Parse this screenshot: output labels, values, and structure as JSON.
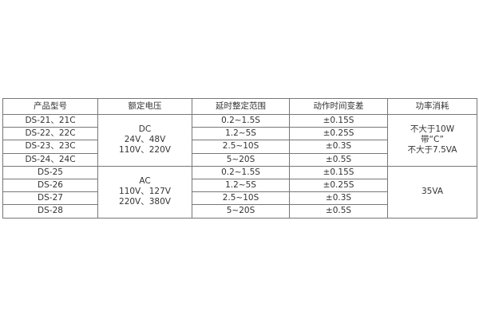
{
  "headers": [
    "产品型号",
    "额定电压",
    "延时整定范围",
    "动作时间变差",
    "功率消耗"
  ],
  "rows": [
    {
      "model": "DS-21、21C",
      "range": "0.2~1.5S",
      "variance": "±0.15S"
    },
    {
      "model": "DS-22、22C",
      "range": "1.2~5S",
      "variance": "±0.25S"
    },
    {
      "model": "DS-23、23C",
      "range": "2.5~10S",
      "variance": "±0.3S"
    },
    {
      "model": "DS-24、24C",
      "range": "5~20S",
      "variance": "±0.5S"
    },
    {
      "model": "DS-25",
      "range": "0.2~1.5S",
      "variance": "±0.15S"
    },
    {
      "model": "DS-26",
      "range": "1.2~5S",
      "variance": "±0.25S"
    },
    {
      "model": "DS-27",
      "range": "2.5~10S",
      "variance": "±0.3S"
    },
    {
      "model": "DS-28",
      "range": "5~20S",
      "variance": "±0.5S"
    }
  ],
  "voltage_groups": [
    {
      "lines": [
        "DC",
        "24V、48V",
        "110V、220V"
      ]
    },
    {
      "lines": [
        "AC",
        "110V、127V",
        "220V、380V"
      ]
    }
  ],
  "power_groups": [
    {
      "lines": [
        "不大于10W",
        "带“C”",
        "不大于7.5VA"
      ]
    },
    {
      "lines": [
        "35VA"
      ]
    }
  ]
}
